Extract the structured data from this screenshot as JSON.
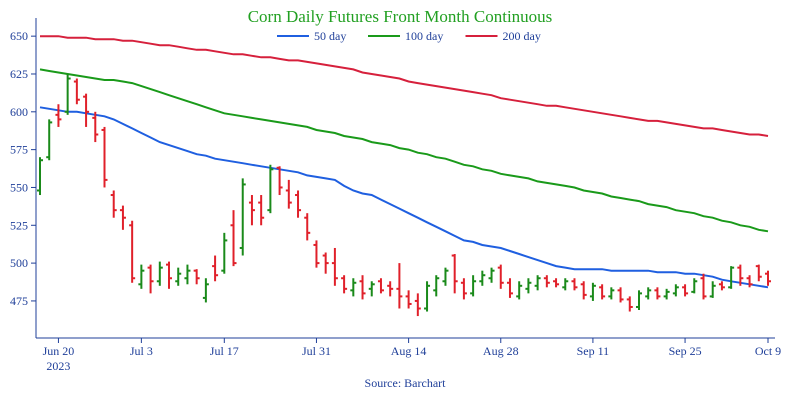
{
  "chart_data": {
    "type": "ohlc",
    "title": "Corn Daily Futures Front Month Continuous",
    "source": "Source: Barchart",
    "categories": [
      null,
      null,
      "Jun 20",
      null,
      null,
      null,
      null,
      null,
      null,
      null,
      null,
      "Jul 3",
      null,
      null,
      null,
      null,
      null,
      null,
      null,
      null,
      "Jul 17",
      null,
      null,
      null,
      null,
      null,
      null,
      null,
      null,
      null,
      "Jul 31",
      null,
      null,
      null,
      null,
      null,
      null,
      null,
      null,
      null,
      "Aug 14",
      null,
      null,
      null,
      null,
      null,
      null,
      null,
      null,
      null,
      "Aug 28",
      null,
      null,
      null,
      null,
      null,
      null,
      null,
      null,
      null,
      "Sep 11",
      null,
      null,
      null,
      null,
      null,
      null,
      null,
      null,
      null,
      "Sep 25",
      null,
      null,
      null,
      null,
      null,
      null,
      null,
      null,
      "Oct 9"
    ],
    "year": "2023",
    "ohlc": {
      "open": [
        548,
        570,
        598,
        600,
        620,
        610,
        596,
        588,
        545,
        535,
        525,
        486,
        497,
        488,
        499,
        488,
        490,
        495,
        477,
        498,
        495,
        525,
        510,
        540,
        540,
        535,
        563,
        548,
        545,
        530,
        512,
        505,
        500,
        490,
        482,
        488,
        483,
        488,
        485,
        483,
        478,
        475,
        470,
        482,
        488,
        505,
        487,
        480,
        488,
        490,
        497,
        487,
        478,
        483,
        485,
        490,
        488,
        484,
        488,
        486,
        478,
        484,
        478,
        482,
        476,
        471,
        478,
        482,
        478,
        480,
        484,
        481,
        490,
        478,
        486,
        484,
        497,
        490,
        498,
        493
      ],
      "high": [
        570,
        595,
        605,
        625,
        622,
        612,
        600,
        590,
        548,
        538,
        528,
        499,
        499,
        501,
        501,
        497,
        499,
        496,
        490,
        505,
        520,
        535,
        556,
        545,
        545,
        565,
        564,
        555,
        548,
        533,
        515,
        507,
        510,
        492,
        490,
        492,
        488,
        490,
        488,
        500,
        482,
        480,
        488,
        492,
        497,
        506,
        490,
        492,
        495,
        497,
        499,
        490,
        488,
        490,
        492,
        492,
        490,
        490,
        490,
        488,
        487,
        486,
        484,
        484,
        478,
        482,
        484,
        484,
        483,
        486,
        486,
        490,
        493,
        488,
        488,
        498,
        499,
        492,
        499,
        495
      ],
      "low": [
        545,
        568,
        590,
        598,
        605,
        590,
        580,
        550,
        530,
        522,
        487,
        483,
        480,
        485,
        483,
        485,
        486,
        486,
        474,
        488,
        493,
        498,
        505,
        525,
        525,
        533,
        545,
        536,
        530,
        515,
        497,
        493,
        485,
        480,
        478,
        476,
        478,
        480,
        478,
        470,
        470,
        465,
        468,
        478,
        485,
        480,
        476,
        478,
        485,
        487,
        483,
        477,
        476,
        480,
        482,
        484,
        484,
        482,
        482,
        476,
        475,
        476,
        476,
        474,
        468,
        469,
        476,
        476,
        476,
        478,
        478,
        480,
        476,
        477,
        482,
        483,
        485,
        484,
        488,
        485
      ],
      "close": [
        568,
        593,
        595,
        622,
        608,
        600,
        585,
        555,
        535,
        530,
        490,
        495,
        488,
        497,
        490,
        493,
        495,
        490,
        486,
        492,
        515,
        500,
        552,
        535,
        530,
        562,
        550,
        540,
        535,
        520,
        500,
        500,
        490,
        483,
        487,
        480,
        486,
        482,
        483,
        478,
        473,
        470,
        485,
        490,
        495,
        488,
        480,
        488,
        492,
        495,
        487,
        480,
        485,
        487,
        490,
        487,
        486,
        488,
        484,
        479,
        485,
        478,
        482,
        476,
        471,
        480,
        482,
        478,
        481,
        484,
        480,
        488,
        478,
        485,
        484,
        497,
        490,
        486,
        491,
        488
      ]
    },
    "up_color": "#1a8a1a",
    "down_color": "#e0202a",
    "series": [
      {
        "name": "50 day",
        "color": "#1f5fe0",
        "values": [
          603,
          602,
          601,
          600,
          600,
          599,
          598,
          597,
          595,
          592,
          589,
          586,
          583,
          580,
          578,
          576,
          574,
          572,
          571,
          569,
          568,
          567,
          566,
          565,
          564,
          563,
          562,
          561,
          560,
          558,
          557,
          556,
          555,
          551,
          548,
          546,
          545,
          542,
          539,
          536,
          533,
          530,
          527,
          524,
          521,
          518,
          515,
          514,
          512,
          511,
          510,
          508,
          506,
          504,
          502,
          500,
          498,
          497,
          496,
          496,
          496,
          496,
          495,
          495,
          495,
          495,
          495,
          494,
          494,
          494,
          493,
          493,
          492,
          491,
          489,
          488,
          487,
          486,
          485,
          484
        ]
      },
      {
        "name": "100 day",
        "color": "#1a9a1a",
        "values": [
          628,
          627,
          626,
          625,
          624,
          623,
          622,
          621,
          621,
          620,
          619,
          617,
          615,
          613,
          611,
          609,
          607,
          605,
          603,
          601,
          599,
          598,
          597,
          596,
          595,
          594,
          593,
          592,
          591,
          590,
          588,
          587,
          586,
          584,
          583,
          582,
          580,
          579,
          578,
          576,
          575,
          573,
          572,
          570,
          569,
          567,
          565,
          564,
          562,
          561,
          559,
          558,
          557,
          556,
          554,
          553,
          552,
          551,
          550,
          548,
          547,
          546,
          544,
          543,
          542,
          541,
          539,
          538,
          537,
          535,
          534,
          533,
          531,
          530,
          528,
          527,
          525,
          524,
          522,
          521
        ]
      },
      {
        "name": "200 day",
        "color": "#d6203c",
        "values": [
          650,
          650,
          650,
          649,
          649,
          649,
          648,
          648,
          648,
          647,
          647,
          646,
          645,
          644,
          644,
          643,
          642,
          641,
          641,
          640,
          639,
          638,
          638,
          637,
          636,
          636,
          635,
          634,
          634,
          633,
          632,
          631,
          630,
          629,
          628,
          626,
          625,
          624,
          623,
          622,
          620,
          619,
          618,
          617,
          616,
          615,
          614,
          613,
          612,
          611,
          609,
          608,
          607,
          606,
          605,
          604,
          604,
          603,
          602,
          601,
          600,
          599,
          598,
          597,
          596,
          595,
          594,
          594,
          593,
          592,
          591,
          590,
          589,
          589,
          588,
          587,
          586,
          585,
          585,
          584
        ]
      }
    ],
    "legend": "top",
    "ylim": [
      450.5,
      662
    ],
    "yticks": [
      475,
      500,
      525,
      550,
      575,
      600,
      625,
      650
    ],
    "grid": false
  }
}
